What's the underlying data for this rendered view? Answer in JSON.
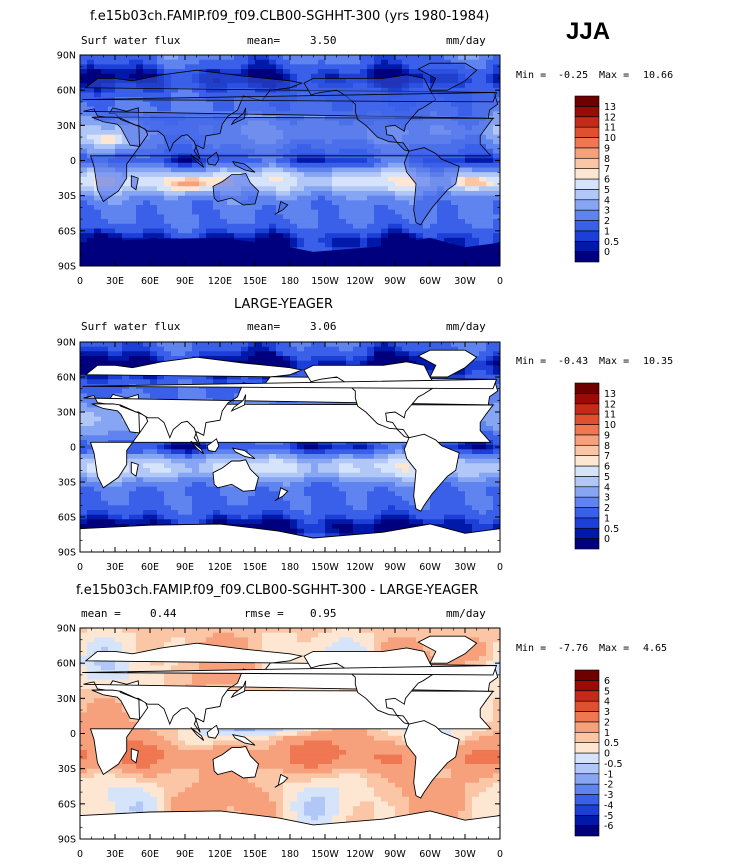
{
  "season": "JJA",
  "units": "mm/day",
  "panels": [
    {
      "title": "f.e15b03ch.FAMIP.f09_f09.CLB00-SGHHT-300 (yrs 1980-1984)",
      "left_label": "Surf water flux",
      "mean_label": "mean=",
      "mean_value": "3.50",
      "units": "mm/day",
      "min_label": "Min =",
      "min_value": "-0.25",
      "max_label": "Max =",
      "max_value": "10.66",
      "colorbar": {
        "levels": [
          "0",
          "0.5",
          "1",
          "2",
          "3",
          "4",
          "5",
          "6",
          "7",
          "8",
          "9",
          "10",
          "11",
          "12",
          "13"
        ],
        "colors": [
          "#00007f",
          "#0019a8",
          "#1c3fd8",
          "#3a5fe8",
          "#5f83ef",
          "#86a5f3",
          "#b0c7f7",
          "#d6e4fb",
          "#fde6d2",
          "#fbc6a6",
          "#f7a07c",
          "#ef7751",
          "#e0502f",
          "#c32a18",
          "#9b0b05",
          "#6e0000"
        ]
      }
    },
    {
      "title": "LARGE-YEAGER",
      "left_label": "Surf water flux",
      "mean_label": "mean=",
      "mean_value": "3.06",
      "units": "mm/day",
      "min_label": "Min =",
      "min_value": "-0.43",
      "max_label": "Max =",
      "max_value": "10.35",
      "colorbar": {
        "levels": [
          "0",
          "0.5",
          "1",
          "2",
          "3",
          "4",
          "5",
          "6",
          "7",
          "8",
          "9",
          "10",
          "11",
          "12",
          "13"
        ],
        "colors": [
          "#00007f",
          "#0019a8",
          "#1c3fd8",
          "#3a5fe8",
          "#5f83ef",
          "#86a5f3",
          "#b0c7f7",
          "#d6e4fb",
          "#fde6d2",
          "#fbc6a6",
          "#f7a07c",
          "#ef7751",
          "#e0502f",
          "#c32a18",
          "#9b0b05",
          "#6e0000"
        ]
      }
    },
    {
      "title": "f.e15b03ch.FAMIP.f09_f09.CLB00-SGHHT-300 - LARGE-YEAGER",
      "left_label": "mean =",
      "mean_label": "rmse =",
      "left_value": "0.44",
      "mean_value": "0.95",
      "units": "mm/day",
      "min_label": "Min =",
      "min_value": "-7.76",
      "max_label": "Max =",
      "max_value": "4.65",
      "colorbar": {
        "levels": [
          "-6",
          "-5",
          "-4",
          "-3",
          "-2",
          "-1",
          "-0.5",
          "0",
          "0.5",
          "1",
          "2",
          "3",
          "4",
          "5",
          "6"
        ],
        "colors": [
          "#00007f",
          "#0019a8",
          "#1c3fd8",
          "#3a5fe8",
          "#5f83ef",
          "#86a5f3",
          "#b0c7f7",
          "#d6e4fb",
          "#fde6d2",
          "#fbc6a6",
          "#f7a07c",
          "#ef7751",
          "#e0502f",
          "#c32a18",
          "#9b0b05",
          "#6e0000"
        ]
      }
    }
  ],
  "chart_data": {
    "type": "heatmap",
    "variable": "Surf water flux",
    "season": "JJA",
    "units": "mm/day",
    "xlabel": "",
    "ylabel": "",
    "x_ticks": [
      "0",
      "30E",
      "60E",
      "90E",
      "120E",
      "150E",
      "180",
      "150W",
      "120W",
      "90W",
      "60W",
      "30W",
      "0"
    ],
    "y_ticks": [
      "90N",
      "60N",
      "30N",
      "0",
      "30S",
      "60S",
      "90S"
    ],
    "xlim": [
      0,
      360
    ],
    "ylim": [
      -90,
      90
    ],
    "maps": [
      {
        "name": "f.e15b03ch.FAMIP.f09_f09.CLB00-SGHHT-300 (yrs 1980-1984)",
        "mean": 3.5,
        "min": -0.25,
        "max": 10.66
      },
      {
        "name": "LARGE-YEAGER",
        "mean": 3.06,
        "min": -0.43,
        "max": 10.35
      },
      {
        "name": "f.e15b03ch.FAMIP.f09_f09.CLB00-SGHHT-300 - LARGE-YEAGER",
        "mean": 0.44,
        "rmse": 0.95,
        "min": -7.76,
        "max": 4.65
      }
    ]
  }
}
